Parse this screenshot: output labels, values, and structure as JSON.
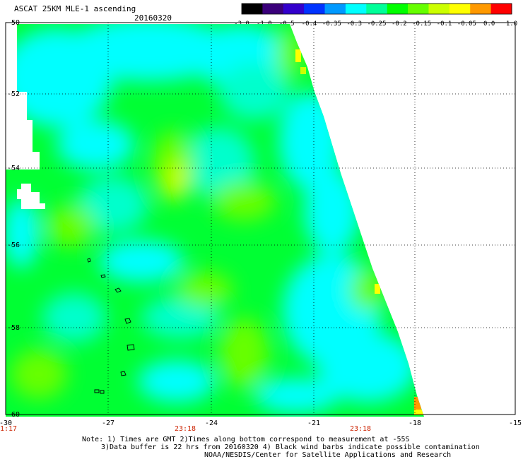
{
  "header": {
    "title": "ASCAT 25KM MLE-1 ascending",
    "date": "20160320"
  },
  "colorbar": {
    "labels": [
      "-3.0",
      "-1.0",
      "-0.5",
      "-0.4",
      "-0.35",
      "-0.3",
      "-0.25",
      "-0.2",
      "-0.15",
      "-0.1",
      "-0.05",
      "0.0",
      "1.0"
    ],
    "colors": [
      "#000000",
      "#3a007a",
      "#3300cc",
      "#0033ff",
      "#0099ff",
      "#00ffff",
      "#00ff99",
      "#00ff00",
      "#66ff00",
      "#ccff00",
      "#ffff00",
      "#ff9900",
      "#ff0000"
    ]
  },
  "map": {
    "lat_labels": [
      "-50",
      "-52",
      "-54",
      "-56",
      "-58",
      "-60"
    ],
    "lon_labels": [
      "-30",
      "-27",
      "-24",
      "-21",
      "-18",
      "-15"
    ],
    "time_labels": [
      "1:17",
      "23:18",
      "23:18"
    ],
    "palette": {
      "cyan": "#00ffff",
      "aqua": "#00ffcc",
      "green": "#00ff33",
      "lime": "#66ff00",
      "yellowgreen": "#ccff00",
      "yellow": "#ffff00",
      "orange": "#ff9900"
    }
  },
  "notes": {
    "line1": "Note: 1) Times are GMT 2)Times along bottom correspond to measurement at -55S",
    "line2": "3)Data buffer is 22 hrs from 20160320 4) Black wind barbs indicate possible contamination",
    "line3": "NOAA/NESDIS/Center for Satellite Applications and Research"
  }
}
